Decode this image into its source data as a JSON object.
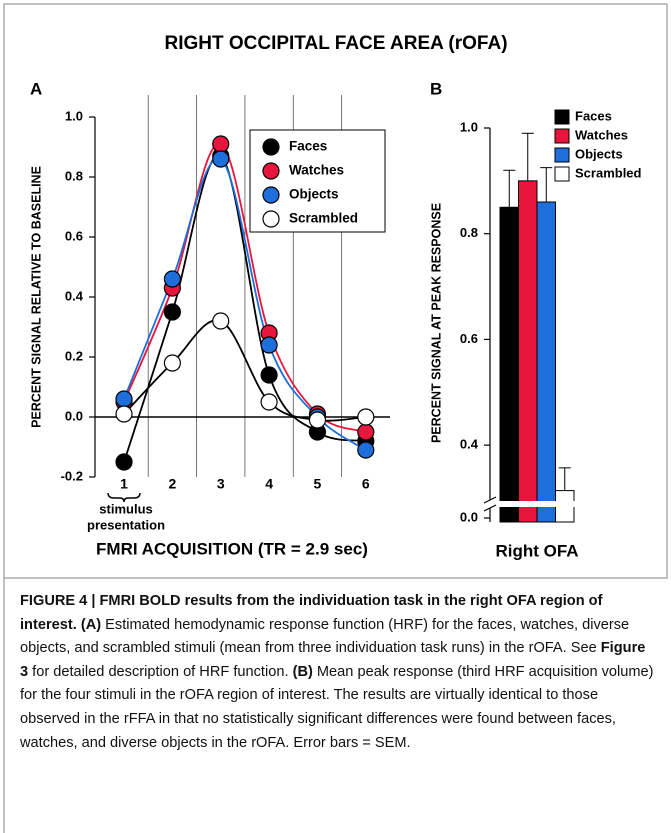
{
  "title": "RIGHT OCCIPITAL FACE AREA (rOFA)",
  "chart_data": [
    {
      "type": "line",
      "panel_label": "A",
      "x_label": "FMRI ACQUISITION (TR = 2.9 sec)",
      "y_label": "PERCENT SIGNAL RELATIVE TO BASELINE",
      "annotation": [
        "stimulus",
        "presentation"
      ],
      "x": [
        1,
        2,
        3,
        4,
        5,
        6
      ],
      "xlim": [
        0.4,
        6.5
      ],
      "xticks": [
        1,
        2,
        3,
        4,
        5,
        6
      ],
      "ylim": [
        -0.2,
        1.0
      ],
      "yticks": [
        -0.2,
        {
          "value": 0,
          "label": "0.0"
        },
        0.2,
        0.4,
        0.6,
        0.8,
        {
          "value": 1,
          "label": "1.0"
        }
      ],
      "series": [
        {
          "name": "Faces",
          "color": "#000000",
          "values": [
            -0.15,
            0.35,
            0.87,
            0.14,
            -0.05,
            -0.08
          ]
        },
        {
          "name": "Watches",
          "color": "#e8163c",
          "values": [
            0.05,
            0.43,
            0.91,
            0.28,
            0.01,
            -0.05
          ]
        },
        {
          "name": "Objects",
          "color": "#1e6fdc",
          "values": [
            0.06,
            0.46,
            0.86,
            0.24,
            0.0,
            -0.11
          ]
        },
        {
          "name": "Scrambled",
          "color": "#ffffff",
          "values": [
            0.01,
            0.18,
            0.32,
            0.05,
            -0.01,
            0.0
          ]
        }
      ]
    },
    {
      "type": "bar",
      "panel_label": "B",
      "y_label": "PERCENT SIGNAL AT PEAK RESPONSE",
      "categories": [
        "Right OFA"
      ],
      "ylim": [
        0,
        1.0
      ],
      "y_break": [
        0,
        0.3
      ],
      "yticks": [
        {
          "value": 0,
          "label": "0.0"
        },
        0.4,
        0.6,
        0.8,
        {
          "value": 1,
          "label": "1.0"
        }
      ],
      "series": [
        {
          "name": "Faces",
          "color": "#000000",
          "values": [
            0.85
          ],
          "errors": [
            0.07
          ]
        },
        {
          "name": "Watches",
          "color": "#e8163c",
          "values": [
            0.9
          ],
          "errors": [
            0.09
          ]
        },
        {
          "name": "Objects",
          "color": "#1e6fdc",
          "values": [
            0.86
          ],
          "errors": [
            0.065
          ]
        },
        {
          "name": "Scrambled",
          "color": "#ffffff",
          "values": [
            0.314
          ],
          "errors": [
            0.043
          ]
        }
      ]
    }
  ],
  "caption": [
    {
      "text": "FIGURE 4 | FMRI BOLD results from the individuation task in the right OFA region of interest.",
      "bold": true
    },
    {
      "text": " ",
      "bold": false
    },
    {
      "text": "(A)",
      "bold": true
    },
    {
      "text": " Estimated hemodynamic response function (HRF) for the faces, watches, diverse objects, and scrambled stimuli (mean from three individuation task runs) in the rOFA. See ",
      "bold": false
    },
    {
      "text": "Figure 3",
      "bold": true
    },
    {
      "text": " for detailed description of HRF function. ",
      "bold": false
    },
    {
      "text": "(B)",
      "bold": true
    },
    {
      "text": " Mean peak response (third HRF acquisition volume) for the four stimuli in the rOFA region of interest. The results are virtually identical to those observed in the rFFA in that no statistically significant differences were found between faces, watches, and diverse objects in the rOFA. Error bars = SEM.",
      "bold": false
    }
  ]
}
